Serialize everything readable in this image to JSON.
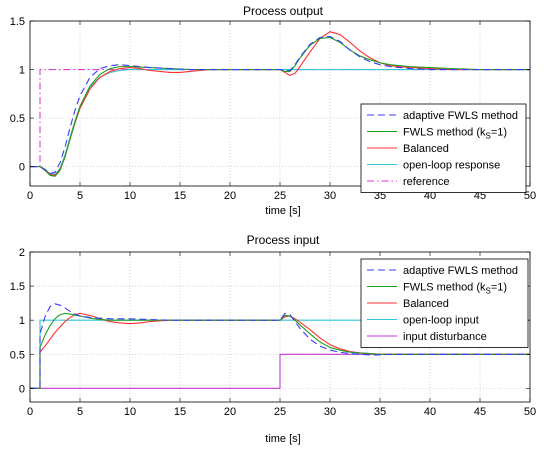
{
  "chart_data": [
    {
      "type": "line",
      "title": "Process output",
      "xlabel": "time [s]",
      "ylabel": "",
      "xlim": [
        0,
        50
      ],
      "ylim": [
        -0.2,
        1.5
      ],
      "xticks": [
        "0",
        "5",
        "10",
        "15",
        "20",
        "25",
        "30",
        "35",
        "40",
        "45",
        "50"
      ],
      "yticks": [
        "0",
        "0.5",
        "1",
        "1.5"
      ],
      "grid": true,
      "legend_position": "bottom-right",
      "legend": [
        {
          "label": "adaptive FWLS method",
          "color": "#3a3aff",
          "dash": "dashed"
        },
        {
          "label": "FWLS method (k",
          "sub": "S",
          "suffix": "=1)",
          "color": "#1e9e1e",
          "dash": "solid"
        },
        {
          "label": "Balanced",
          "color": "#ff3030",
          "dash": "solid"
        },
        {
          "label": "open-loop response",
          "color": "#2ec6d8",
          "dash": "solid"
        },
        {
          "label": "reference",
          "color": "#e23ad6",
          "dash": "dashdot"
        }
      ],
      "series": [
        {
          "name": "reference",
          "color": "#e23ad6",
          "dash": "dashdot",
          "x": [
            0,
            1.0,
            1.0,
            50
          ],
          "y": [
            0,
            0,
            1,
            1
          ]
        },
        {
          "name": "open-loop response",
          "color": "#2ec6d8",
          "dash": "solid",
          "x": [
            0,
            1,
            1.5,
            2,
            2.5,
            3,
            3.5,
            4,
            4.5,
            5,
            6,
            7,
            8,
            9,
            10,
            12,
            14,
            16,
            18,
            20,
            25,
            50
          ],
          "y": [
            0,
            0,
            -0.03,
            -0.07,
            -0.08,
            -0.02,
            0.12,
            0.3,
            0.47,
            0.62,
            0.82,
            0.92,
            0.97,
            0.99,
            1.0,
            1.0,
            1.0,
            1.0,
            1.0,
            1.0,
            1.0,
            1.0
          ]
        },
        {
          "name": "Balanced",
          "color": "#ff3030",
          "dash": "solid",
          "x": [
            0,
            1,
            1.5,
            2,
            2.5,
            3,
            3.5,
            4,
            4.5,
            5,
            6,
            7,
            8,
            9,
            10,
            11,
            12,
            13,
            14,
            15,
            16,
            17,
            18,
            20,
            22,
            24,
            25,
            25.5,
            26,
            26.5,
            27,
            28,
            29,
            30,
            31,
            32,
            33,
            34,
            35,
            36,
            38,
            40,
            42,
            45,
            50
          ],
          "y": [
            0,
            0,
            -0.03,
            -0.08,
            -0.09,
            -0.03,
            0.1,
            0.28,
            0.45,
            0.6,
            0.8,
            0.92,
            0.98,
            1.01,
            1.02,
            1.01,
            0.99,
            0.98,
            0.97,
            0.97,
            0.98,
            0.99,
            1.0,
            1.0,
            1.0,
            1.0,
            1.0,
            0.97,
            0.94,
            0.96,
            1.03,
            1.18,
            1.32,
            1.39,
            1.36,
            1.28,
            1.19,
            1.12,
            1.07,
            1.04,
            1.02,
            1.01,
            1.0,
            1.0,
            1.0
          ]
        },
        {
          "name": "FWLS method (kS=1)",
          "color": "#1e9e1e",
          "dash": "solid",
          "x": [
            0,
            1,
            1.5,
            2,
            2.5,
            3,
            3.5,
            4,
            4.5,
            5,
            6,
            7,
            8,
            9,
            10,
            12,
            14,
            16,
            18,
            20,
            24,
            25,
            25.5,
            26,
            26.5,
            27,
            28,
            29,
            30,
            31,
            32,
            33,
            34,
            35,
            36,
            37,
            38,
            40,
            42,
            45,
            50
          ],
          "y": [
            0,
            0,
            -0.04,
            -0.09,
            -0.1,
            -0.04,
            0.1,
            0.28,
            0.46,
            0.62,
            0.83,
            0.95,
            1.01,
            1.03,
            1.03,
            1.02,
            1.01,
            1.0,
            1.0,
            1.0,
            1.0,
            1.0,
            0.98,
            0.98,
            1.04,
            1.12,
            1.25,
            1.32,
            1.33,
            1.28,
            1.2,
            1.14,
            1.1,
            1.07,
            1.05,
            1.04,
            1.03,
            1.02,
            1.01,
            1.0,
            1.0
          ]
        },
        {
          "name": "adaptive FWLS method",
          "color": "#3a3aff",
          "dash": "dashed",
          "x": [
            0,
            1,
            1.5,
            2,
            2.5,
            3,
            3.5,
            4,
            4.5,
            5,
            6,
            7,
            8,
            9,
            10,
            12,
            14,
            16,
            18,
            20,
            24,
            25,
            25.5,
            26,
            26.5,
            27,
            28,
            29,
            30,
            31,
            32,
            33,
            34,
            35,
            36,
            38,
            40,
            42,
            45,
            50
          ],
          "y": [
            0,
            0,
            -0.03,
            -0.07,
            -0.06,
            0.04,
            0.2,
            0.4,
            0.58,
            0.73,
            0.92,
            1.01,
            1.04,
            1.05,
            1.04,
            1.02,
            1.01,
            1.0,
            1.0,
            1.0,
            1.0,
            1.0,
            0.99,
            0.99,
            1.05,
            1.13,
            1.26,
            1.33,
            1.34,
            1.29,
            1.2,
            1.13,
            1.08,
            1.05,
            1.03,
            1.01,
            1.0,
            1.0,
            1.0,
            1.0
          ]
        }
      ]
    },
    {
      "type": "line",
      "title": "Process input",
      "xlabel": "time [s]",
      "ylabel": "",
      "xlim": [
        0,
        50
      ],
      "ylim": [
        -0.2,
        2
      ],
      "xticks": [
        "0",
        "5",
        "10",
        "15",
        "20",
        "25",
        "30",
        "35",
        "40",
        "45",
        "50"
      ],
      "yticks": [
        "0",
        "0.5",
        "1",
        "1.5",
        "2"
      ],
      "grid": true,
      "legend_position": "top-right",
      "legend": [
        {
          "label": "adaptive FWLS method",
          "color": "#3a3aff",
          "dash": "dashed"
        },
        {
          "label": "FWLS method (k",
          "sub": "S",
          "suffix": "=1)",
          "color": "#1e9e1e",
          "dash": "solid"
        },
        {
          "label": "Balanced",
          "color": "#ff3030",
          "dash": "solid"
        },
        {
          "label": "open-loop input",
          "color": "#2ec6d8",
          "dash": "solid"
        },
        {
          "label": "input disturbance",
          "color": "#c23ad6",
          "dash": "solid"
        }
      ],
      "series": [
        {
          "name": "input disturbance",
          "color": "#c23ad6",
          "dash": "solid",
          "x": [
            0,
            25,
            25,
            50
          ],
          "y": [
            0,
            0,
            0.5,
            0.5
          ]
        },
        {
          "name": "open-loop input",
          "color": "#2ec6d8",
          "dash": "solid",
          "x": [
            0,
            1,
            1,
            50
          ],
          "y": [
            0,
            0,
            1,
            1
          ]
        },
        {
          "name": "Balanced",
          "color": "#ff3030",
          "dash": "solid",
          "x": [
            0,
            1,
            1,
            1.5,
            2,
            2.5,
            3,
            3.5,
            4,
            4.5,
            5,
            6,
            7,
            8,
            9,
            10,
            11,
            12,
            13,
            14,
            15,
            16,
            18,
            20,
            22,
            24,
            25,
            25.5,
            26,
            26.5,
            27,
            28,
            29,
            30,
            31,
            32,
            33,
            34,
            35,
            36,
            38,
            40,
            45,
            50
          ],
          "y": [
            0,
            0,
            0.53,
            0.62,
            0.72,
            0.82,
            0.9,
            0.98,
            1.04,
            1.08,
            1.1,
            1.07,
            1.02,
            0.98,
            0.96,
            0.95,
            0.96,
            0.98,
            0.99,
            1.0,
            1.0,
            1.0,
            1.0,
            1.0,
            1.0,
            1.0,
            1.0,
            1.05,
            1.06,
            1.02,
            0.97,
            0.86,
            0.74,
            0.64,
            0.58,
            0.54,
            0.52,
            0.51,
            0.5,
            0.5,
            0.5,
            0.5,
            0.5,
            0.5
          ]
        },
        {
          "name": "FWLS method (kS=1)",
          "color": "#1e9e1e",
          "dash": "solid",
          "x": [
            0,
            1,
            1,
            1.5,
            2,
            2.5,
            3,
            3.5,
            4,
            5,
            6,
            7,
            8,
            9,
            10,
            12,
            14,
            16,
            20,
            25,
            25.5,
            26,
            26.5,
            27,
            28,
            29,
            30,
            31,
            32,
            33,
            34,
            35,
            36,
            38,
            40,
            45,
            50
          ],
          "y": [
            0,
            0,
            0.6,
            0.78,
            0.92,
            1.02,
            1.08,
            1.1,
            1.09,
            1.06,
            1.03,
            1.01,
            1.0,
            1.0,
            1.0,
            1.0,
            1.0,
            1.0,
            1.0,
            1.0,
            1.07,
            1.06,
            1.0,
            0.93,
            0.8,
            0.68,
            0.6,
            0.56,
            0.53,
            0.52,
            0.51,
            0.5,
            0.5,
            0.5,
            0.5,
            0.5,
            0.5
          ]
        },
        {
          "name": "adaptive FWLS method",
          "color": "#3a3aff",
          "dash": "dashed",
          "x": [
            0,
            1,
            1,
            1.5,
            2,
            2.5,
            3,
            3.5,
            4,
            4.5,
            5,
            6,
            7,
            8,
            9,
            10,
            12,
            14,
            16,
            20,
            25,
            25.5,
            26,
            26.5,
            27,
            28,
            29,
            30,
            31,
            32,
            33,
            34,
            35,
            36,
            38,
            40,
            45,
            50
          ],
          "y": [
            0,
            0,
            0.8,
            1.05,
            1.2,
            1.24,
            1.22,
            1.18,
            1.13,
            1.09,
            1.06,
            1.04,
            1.03,
            1.02,
            1.02,
            1.02,
            1.01,
            1.0,
            1.0,
            1.0,
            1.0,
            1.1,
            1.08,
            0.98,
            0.88,
            0.72,
            0.62,
            0.56,
            0.53,
            0.51,
            0.5,
            0.49,
            0.49,
            0.5,
            0.5,
            0.5,
            0.5,
            0.5
          ]
        }
      ]
    }
  ]
}
